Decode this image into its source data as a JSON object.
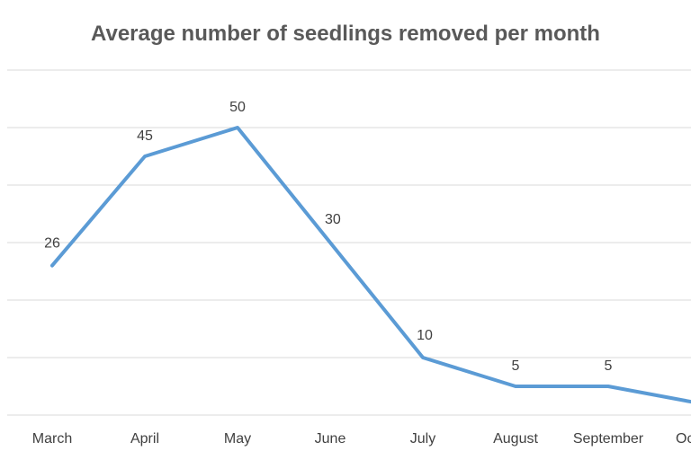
{
  "chart_data": {
    "type": "line",
    "title": "Average number of seedlings removed per month",
    "xlabel": "",
    "ylabel": "",
    "categories": [
      "March",
      "April",
      "May",
      "June",
      "July",
      "August",
      "September",
      "October"
    ],
    "category_labels_visible": [
      "March",
      "April",
      "May",
      "June",
      "July",
      "August",
      "September",
      "Oc"
    ],
    "series": [
      {
        "values": [
          26,
          45,
          50,
          30,
          10,
          5,
          5,
          2
        ]
      }
    ],
    "data_labels": [
      "26",
      "45",
      "50",
      "30",
      "10",
      "5",
      "5",
      ""
    ],
    "ylim": [
      0,
      60
    ],
    "grid": true,
    "legend": "none",
    "colors": {
      "line": "#5b9bd5",
      "grid": "#d9d9d9",
      "text": "#404040",
      "title": "#595959"
    }
  }
}
